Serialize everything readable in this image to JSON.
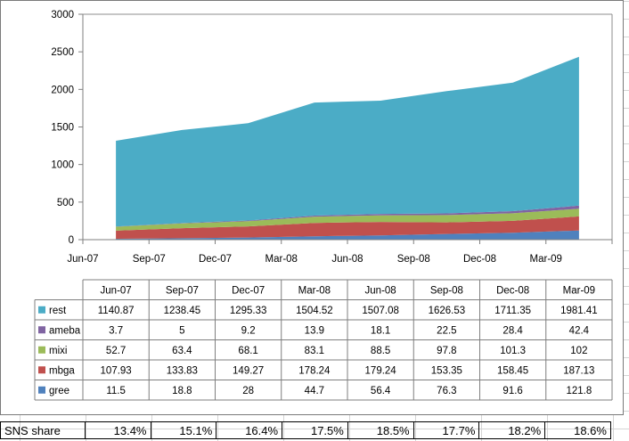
{
  "chart_data": {
    "type": "area",
    "stacked": true,
    "categories": [
      "Jun-07",
      "Sep-07",
      "Dec-07",
      "Mar-08",
      "Jun-08",
      "Sep-08",
      "Dec-08",
      "Mar-09"
    ],
    "ylim": [
      0,
      3000
    ],
    "yticks": [
      0,
      500,
      1000,
      1500,
      2000,
      2500,
      3000
    ],
    "grid": false,
    "series": [
      {
        "name": "gree",
        "color": "#4f81bd",
        "values": [
          11.5,
          18.8,
          28,
          44.7,
          56.4,
          76.3,
          91.6,
          121.8
        ]
      },
      {
        "name": "mbga",
        "color": "#c0504d",
        "values": [
          107.93,
          133.83,
          149.27,
          178.24,
          179.24,
          153.35,
          158.45,
          187.13
        ]
      },
      {
        "name": "mixi",
        "color": "#9bbb59",
        "values": [
          52.7,
          63.4,
          68.1,
          83.1,
          88.5,
          97.8,
          101.3,
          102
        ]
      },
      {
        "name": "ameba",
        "color": "#8064a2",
        "values": [
          3.7,
          5,
          9.2,
          13.9,
          18.1,
          22.5,
          28.4,
          42.4
        ]
      },
      {
        "name": "rest",
        "color": "#4bacc6",
        "values": [
          1140.87,
          1238.45,
          1295.33,
          1504.52,
          1507.08,
          1626.53,
          1711.35,
          1981.41
        ]
      }
    ],
    "table_rows": [
      {
        "name": "rest",
        "color": "#4bacc6",
        "cells": [
          "1140.87",
          "1238.45",
          "1295.33",
          "1504.52",
          "1507.08",
          "1626.53",
          "1711.35",
          "1981.41"
        ]
      },
      {
        "name": "ameba",
        "color": "#8064a2",
        "cells": [
          "3.7",
          "5",
          "9.2",
          "13.9",
          "18.1",
          "22.5",
          "28.4",
          "42.4"
        ]
      },
      {
        "name": "mixi",
        "color": "#9bbb59",
        "cells": [
          "52.7",
          "63.4",
          "68.1",
          "83.1",
          "88.5",
          "97.8",
          "101.3",
          "102"
        ]
      },
      {
        "name": "mbga",
        "color": "#c0504d",
        "cells": [
          "107.93",
          "133.83",
          "149.27",
          "178.24",
          "179.24",
          "153.35",
          "158.45",
          "187.13"
        ]
      },
      {
        "name": "gree",
        "color": "#4f81bd",
        "cells": [
          "11.5",
          "18.8",
          "28",
          "44.7",
          "56.4",
          "76.3",
          "91.6",
          "121.8"
        ]
      }
    ]
  },
  "sns_share": {
    "label": "SNS share",
    "values": [
      "13.4%",
      "15.1%",
      "16.4%",
      "17.5%",
      "18.5%",
      "17.7%",
      "18.2%",
      "18.6%"
    ]
  }
}
